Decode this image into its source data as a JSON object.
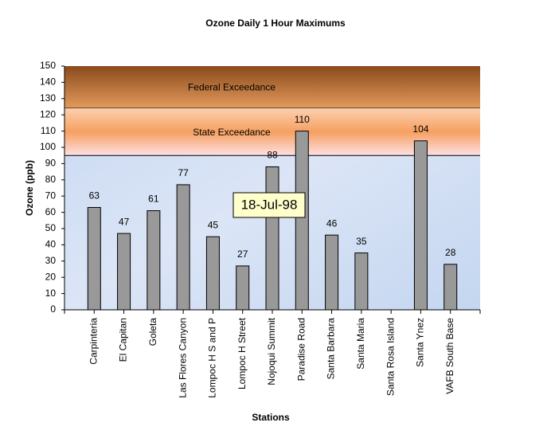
{
  "chart_data": {
    "type": "bar",
    "title": "Ozone Daily 1 Hour Maximums",
    "x_label": "Stations",
    "y_label": "Ozone (ppb)",
    "categories": [
      "Carpinteria",
      "El Capitan",
      "Goleta",
      "Las Flores Canyon",
      "Lompoc H S and P",
      "Lompoc H Street",
      "Nojoqui Summit",
      "Paradise Road",
      "Santa Barbara",
      "Santa Maria",
      "Santa Rosa Island",
      "Santa Ynez",
      "VAFB South Base"
    ],
    "values": [
      63,
      47,
      61,
      77,
      45,
      27,
      88,
      110,
      46,
      35,
      null,
      104,
      28
    ],
    "color": "#999999",
    "ylim": [
      0,
      150
    ],
    "yticks": [
      0,
      10,
      20,
      30,
      40,
      50,
      60,
      70,
      80,
      90,
      100,
      110,
      120,
      130,
      140,
      150
    ],
    "bands": [
      {
        "label": "Federal Exceedance",
        "from": 124,
        "to": 150
      },
      {
        "label": "State Exceedance",
        "from": 95,
        "to": 124
      }
    ],
    "annotation": "18-Jul-98"
  }
}
